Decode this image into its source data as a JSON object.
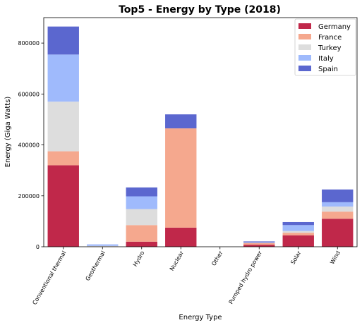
{
  "chart_data": {
    "type": "bar",
    "stacked": true,
    "title": "Top5 - Energy by Type (2018)",
    "xlabel": "Energy Type",
    "ylabel": "Energy (Giga Watts)",
    "categories": [
      "Conventional thermal",
      "Geothermal",
      "Hydro",
      "Nuclear",
      "Other",
      "Pumped hydro power",
      "Solar",
      "Wind"
    ],
    "series": [
      {
        "name": "Germany",
        "color": "#c0284a",
        "values": [
          320000,
          200,
          20000,
          75000,
          0,
          8000,
          45000,
          110000
        ]
      },
      {
        "name": "France",
        "color": "#f5a88e",
        "values": [
          55000,
          100,
          65000,
          390000,
          0,
          7000,
          10000,
          28000
        ]
      },
      {
        "name": "Turkey",
        "color": "#dddddd",
        "values": [
          195000,
          3000,
          63000,
          0,
          0,
          0,
          7000,
          20000
        ]
      },
      {
        "name": "Italy",
        "color": "#9fbafc",
        "values": [
          185000,
          6000,
          50000,
          0,
          0,
          3000,
          23000,
          17000
        ]
      },
      {
        "name": "Spain",
        "color": "#5b67cf",
        "values": [
          110000,
          100,
          35000,
          55000,
          0,
          3000,
          12000,
          50000
        ]
      }
    ],
    "yticks": [
      0,
      200000,
      400000,
      600000,
      800000
    ],
    "ylim": [
      0,
      900000
    ],
    "grid": false,
    "legend_position": "top-right"
  }
}
